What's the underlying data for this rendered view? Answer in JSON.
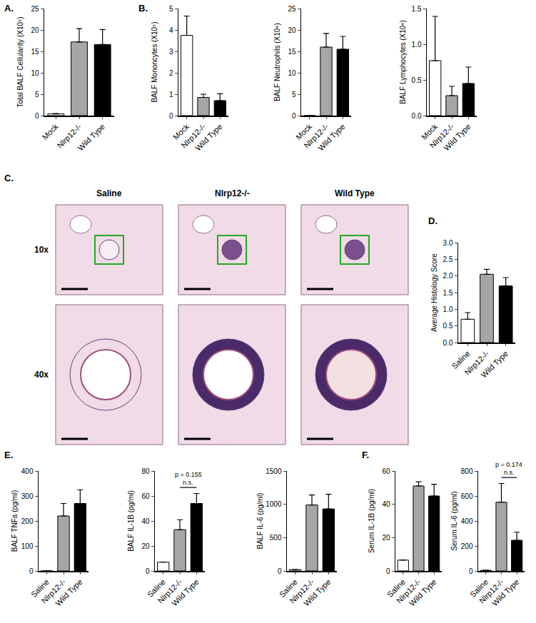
{
  "chart_data": [
    {
      "type": "bar",
      "panel_label": "A.",
      "y_label": "Total BALF Cellularity (X10⁵)",
      "categories": [
        "Mock",
        "Nlrp12-/-",
        "Wild Type"
      ],
      "values": [
        0.4,
        17.2,
        16.6
      ],
      "errors": [
        0.1,
        3.1,
        3.5
      ],
      "colors": [
        "#ffffff",
        "#a6a6a6",
        "#000000"
      ],
      "ylim": [
        0,
        25
      ],
      "yticks": [
        0,
        5,
        10,
        15,
        20,
        25
      ],
      "grid": false
    },
    {
      "type": "bar",
      "panel_label": "B.",
      "y_label": "BALF Mononcytes (X10⁵)",
      "categories": [
        "Mock",
        "Nlrp12-/-",
        "Wild Type"
      ],
      "values": [
        3.75,
        0.85,
        0.7
      ],
      "errors": [
        0.9,
        0.15,
        0.32
      ],
      "colors": [
        "#ffffff",
        "#a6a6a6",
        "#000000"
      ],
      "ylim": [
        0,
        5
      ],
      "yticks": [
        0,
        1,
        2,
        3,
        4,
        5
      ],
      "grid": false
    },
    {
      "type": "bar",
      "y_label": "BALF Neutrophils (X10⁶)",
      "categories": [
        "Mock",
        "Nlrp12-/-",
        "Wild Type"
      ],
      "values": [
        0,
        16,
        15.5
      ],
      "errors": [
        0,
        3.2,
        3
      ],
      "colors": [
        "#ffffff",
        "#a6a6a6",
        "#000000"
      ],
      "ylim": [
        0,
        25
      ],
      "yticks": [
        0,
        5,
        10,
        15,
        20,
        25
      ],
      "grid": false
    },
    {
      "type": "bar",
      "y_label": "BALF Lymphocytes (X10⁶)",
      "categories": [
        "Mock",
        "Nlrp12-/-",
        "Wild Type"
      ],
      "values": [
        0.77,
        0.28,
        0.45
      ],
      "errors": [
        0.62,
        0.13,
        0.23
      ],
      "colors": [
        "#ffffff",
        "#a6a6a6",
        "#000000"
      ],
      "ylim": [
        0,
        1.5
      ],
      "yticks": [
        {
          "value": 0,
          "label": "0.0"
        },
        {
          "value": 0.5,
          "label": "0.5"
        },
        {
          "value": 1,
          "label": "1.0"
        },
        {
          "value": 1.5,
          "label": "1.5"
        }
      ],
      "grid": false
    },
    {
      "type": "image_grid",
      "panel_label": "C.",
      "columns": [
        "Saline",
        "Nlrp12-/-",
        "Wild Type"
      ],
      "rows": [
        "10x",
        "40x"
      ]
    },
    {
      "type": "bar",
      "panel_label": "D.",
      "y_label": "Average Histology Score",
      "categories": [
        "Saline",
        "Nlrp12-/-",
        "Wild Type"
      ],
      "values": [
        0.7,
        2.05,
        1.7
      ],
      "errors": [
        0.2,
        0.15,
        0.25
      ],
      "colors": [
        "#ffffff",
        "#a6a6a6",
        "#000000"
      ],
      "ylim": [
        0,
        3
      ],
      "yticks": [
        {
          "value": 0,
          "label": "0.0"
        },
        {
          "value": 0.5,
          "label": "0.5"
        },
        {
          "value": 1,
          "label": "1.0"
        },
        {
          "value": 1.5,
          "label": "1.5"
        },
        {
          "value": 2,
          "label": "2.0"
        },
        {
          "value": 2.5,
          "label": "2.5"
        },
        {
          "value": 3,
          "label": "3.0"
        }
      ],
      "grid": false
    },
    {
      "type": "bar",
      "panel_label": "E.",
      "y_label": "BALF TNFa (pg/ml)",
      "categories": [
        "Saline",
        "Nlrp12-/-",
        "Wild Type"
      ],
      "values": [
        0,
        220,
        270
      ],
      "errors": [
        0,
        50,
        55
      ],
      "colors": [
        "#ffffff",
        "#a6a6a6",
        "#000000"
      ],
      "ylim": [
        0,
        400
      ],
      "yticks": [
        0,
        100,
        200,
        300,
        400
      ],
      "grid": false
    },
    {
      "type": "bar",
      "y_label": "BALF IL-1B (pg/ml)",
      "categories": [
        "Saline",
        "Nlrp12-/-",
        "Wild Type"
      ],
      "values": [
        7,
        33,
        54
      ],
      "errors": [
        0,
        8,
        8
      ],
      "colors": [
        "#ffffff",
        "#a6a6a6",
        "#000000"
      ],
      "ylim": [
        0,
        80
      ],
      "yticks": [
        0,
        20,
        40,
        60,
        80
      ],
      "grid": false,
      "annotations": [
        {
          "from": "Nlrp12-/-",
          "to": "Wild Type",
          "texts": [
            "n.s.",
            "p = 0.155"
          ]
        }
      ]
    },
    {
      "type": "bar",
      "y_label": "BALF IL-6 (pg/ml)",
      "categories": [
        "Saline",
        "Nlrp12-/-",
        "Wild Type"
      ],
      "values": [
        20,
        990,
        930
      ],
      "errors": [
        0,
        150,
        220
      ],
      "colors": [
        "#ffffff",
        "#a6a6a6",
        "#000000"
      ],
      "ylim": [
        0,
        1500
      ],
      "yticks": [
        0,
        500,
        1000,
        1500
      ],
      "grid": false
    },
    {
      "type": "bar",
      "panel_label": "F.",
      "y_label": "Serum IL-1B (pg/ml)",
      "categories": [
        "Saline",
        "Nlrp12-/-",
        "Wild Type"
      ],
      "values": [
        6.5,
        51,
        45
      ],
      "errors": [
        0,
        2.5,
        7
      ],
      "colors": [
        "#ffffff",
        "#a6a6a6",
        "#000000"
      ],
      "ylim": [
        0,
        60
      ],
      "yticks": [
        0,
        20,
        40,
        60
      ],
      "grid": false
    },
    {
      "type": "bar",
      "y_label": "Serum IL-6 (pg/ml)",
      "categories": [
        "Saline",
        "Nlrp12-/-",
        "Wild Type"
      ],
      "values": [
        5,
        550,
        245
      ],
      "errors": [
        0,
        150,
        65
      ],
      "colors": [
        "#ffffff",
        "#a6a6a6",
        "#000000"
      ],
      "ylim": [
        0,
        800
      ],
      "yticks": [
        0,
        200,
        400,
        600,
        800
      ],
      "grid": false,
      "annotations": [
        {
          "from": "Nlrp12-/-",
          "to": "Wild Type",
          "texts": [
            "n.s.",
            "p = 0.174"
          ]
        }
      ]
    }
  ]
}
